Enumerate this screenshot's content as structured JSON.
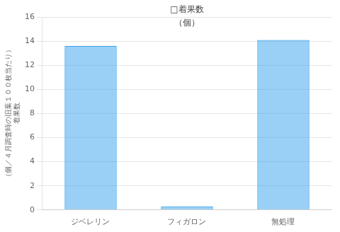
{
  "chart_data": {
    "type": "bar",
    "categories": [
      "ジベレリン",
      "フィガロン",
      "無処理"
    ],
    "values": [
      13.6,
      0.3,
      14.1
    ],
    "ylabel": [
      "（個／４月調査時の旧葉１００枚当たり）",
      "着果数"
    ],
    "annotations": [
      "□着果数",
      "（個）"
    ],
    "ylim": [
      0,
      16
    ],
    "yticks": [
      0,
      2,
      4,
      6,
      8,
      10,
      12,
      14,
      16
    ],
    "grid": true,
    "legend": false
  }
}
